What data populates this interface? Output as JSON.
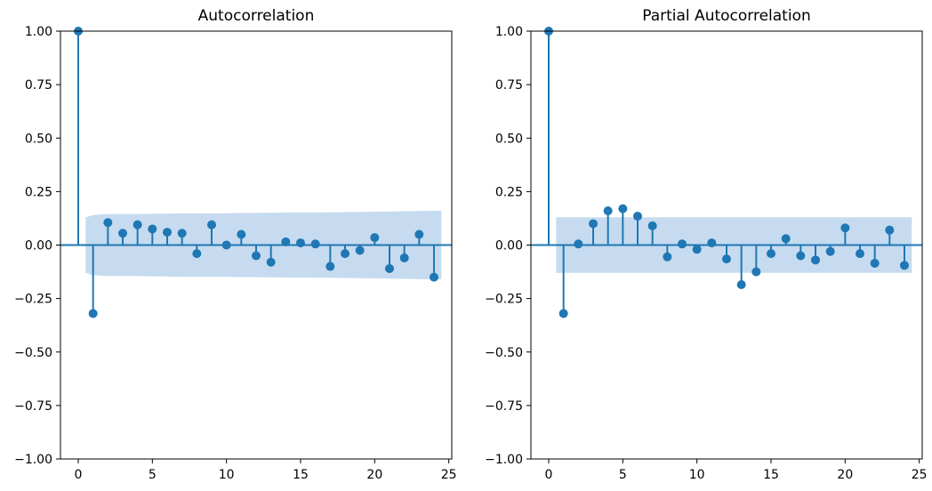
{
  "chart_data": [
    {
      "type": "stem",
      "title": "Autocorrelation",
      "xlabel": "",
      "ylabel": "",
      "xlim": [
        -1.2,
        25.2
      ],
      "ylim": [
        -1.0,
        1.0
      ],
      "xticks": [
        0,
        5,
        10,
        15,
        20,
        25
      ],
      "yticks": [
        "1.00",
        "0.75",
        "0.50",
        "0.25",
        "0.00",
        "−0.25",
        "−0.50",
        "−0.75",
        "−1.00"
      ],
      "ytick_values": [
        1.0,
        0.75,
        0.5,
        0.25,
        0.0,
        -0.25,
        -0.5,
        -0.75,
        -1.0
      ],
      "grid": false,
      "lags": [
        0,
        1,
        2,
        3,
        4,
        5,
        6,
        7,
        8,
        9,
        10,
        11,
        12,
        13,
        14,
        15,
        16,
        17,
        18,
        19,
        20,
        21,
        22,
        23,
        24
      ],
      "values": [
        1.0,
        -0.32,
        0.105,
        0.055,
        0.095,
        0.075,
        0.06,
        0.055,
        -0.04,
        0.095,
        0.0,
        0.05,
        -0.05,
        -0.08,
        0.015,
        0.01,
        0.005,
        -0.1,
        -0.04,
        -0.025,
        0.035,
        -0.11,
        -0.06,
        0.05,
        -0.15
      ],
      "confidence_band": {
        "lags": [
          0.5,
          1,
          2,
          3,
          4,
          5,
          6,
          7,
          8,
          9,
          10,
          11,
          12,
          13,
          14,
          15,
          16,
          17,
          18,
          19,
          20,
          21,
          22,
          23,
          24,
          24.5
        ],
        "upper": [
          0.13,
          0.14,
          0.145,
          0.145,
          0.145,
          0.146,
          0.147,
          0.148,
          0.148,
          0.148,
          0.149,
          0.15,
          0.15,
          0.151,
          0.152,
          0.152,
          0.152,
          0.153,
          0.154,
          0.155,
          0.156,
          0.157,
          0.158,
          0.159,
          0.16,
          0.16
        ],
        "lower": [
          -0.13,
          -0.14,
          -0.145,
          -0.145,
          -0.145,
          -0.146,
          -0.147,
          -0.148,
          -0.148,
          -0.148,
          -0.149,
          -0.15,
          -0.15,
          -0.151,
          -0.152,
          -0.152,
          -0.152,
          -0.153,
          -0.154,
          -0.155,
          -0.156,
          -0.157,
          -0.158,
          -0.159,
          -0.16,
          -0.16
        ]
      },
      "colors": {
        "stem": "#1f77b4",
        "band": "#c6dbef"
      }
    },
    {
      "type": "stem",
      "title": "Partial Autocorrelation",
      "xlabel": "",
      "ylabel": "",
      "xlim": [
        -1.2,
        25.2
      ],
      "ylim": [
        -1.0,
        1.0
      ],
      "xticks": [
        0,
        5,
        10,
        15,
        20,
        25
      ],
      "yticks": [
        "1.00",
        "0.75",
        "0.50",
        "0.25",
        "0.00",
        "−0.25",
        "−0.50",
        "−0.75",
        "−1.00"
      ],
      "ytick_values": [
        1.0,
        0.75,
        0.5,
        0.25,
        0.0,
        -0.25,
        -0.5,
        -0.75,
        -1.0
      ],
      "grid": false,
      "lags": [
        0,
        1,
        2,
        3,
        4,
        5,
        6,
        7,
        8,
        9,
        10,
        11,
        12,
        13,
        14,
        15,
        16,
        17,
        18,
        19,
        20,
        21,
        22,
        23,
        24
      ],
      "values": [
        1.0,
        -0.32,
        0.005,
        0.1,
        0.16,
        0.17,
        0.135,
        0.09,
        -0.055,
        0.005,
        -0.02,
        0.01,
        -0.065,
        -0.185,
        -0.125,
        -0.04,
        0.03,
        -0.05,
        -0.07,
        -0.03,
        0.08,
        -0.04,
        -0.085,
        0.07,
        -0.095
      ],
      "confidence_band": {
        "lags": [
          0.5,
          24.5
        ],
        "upper": [
          0.13,
          0.13
        ],
        "lower": [
          -0.13,
          -0.13
        ]
      },
      "colors": {
        "stem": "#1f77b4",
        "band": "#c6dbef"
      }
    }
  ]
}
